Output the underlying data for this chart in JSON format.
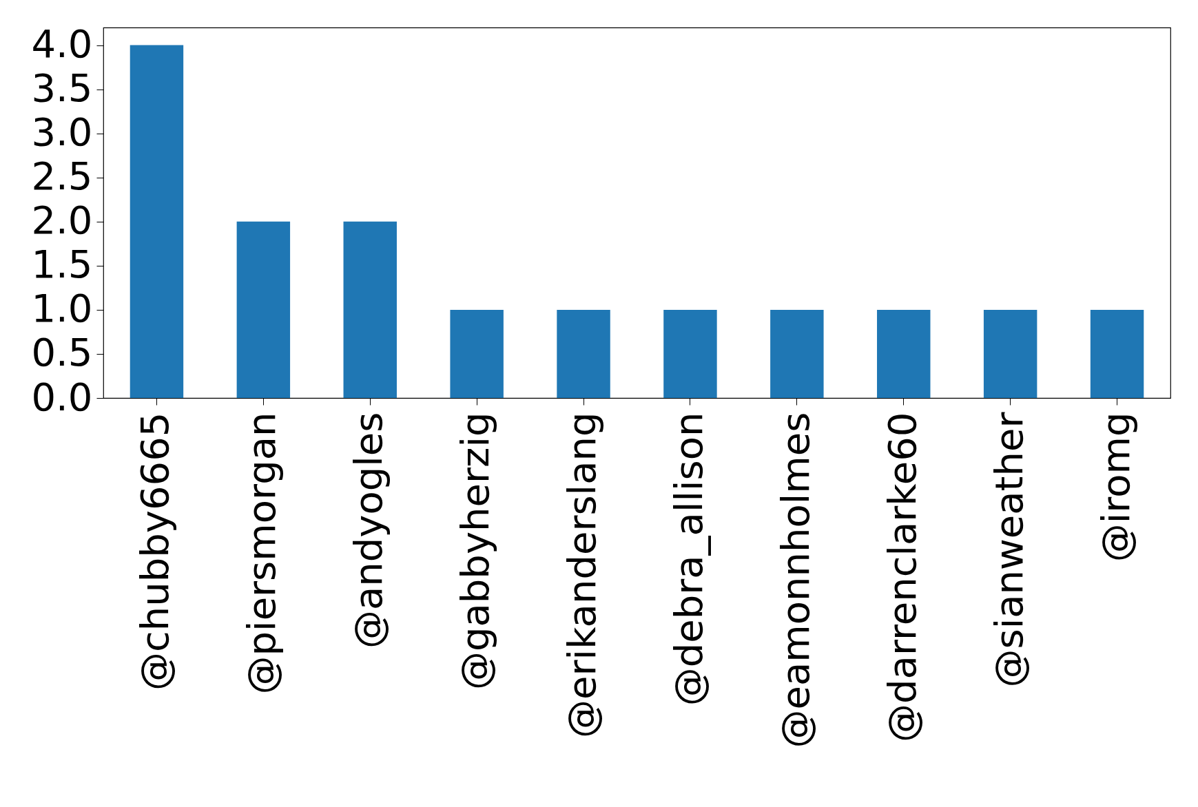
{
  "chart_data": {
    "type": "bar",
    "categories": [
      "@chubby6665",
      "@piersmorgan",
      "@andyogles",
      "@gabbyherzig",
      "@erikanderslang",
      "@debra_allison",
      "@eamonnholmes",
      "@darrenclarke60",
      "@sianweather",
      "@iromg"
    ],
    "values": [
      4,
      2,
      2,
      1,
      1,
      1,
      1,
      1,
      1,
      1
    ],
    "color": "#1f77b4",
    "ylim": [
      0,
      4.2
    ],
    "yticks": [
      {
        "value": 0,
        "label": "0.0"
      },
      {
        "value": 0.5,
        "label": "0.5"
      },
      {
        "value": 1,
        "label": "1.0"
      },
      {
        "value": 1.5,
        "label": "1.5"
      },
      {
        "value": 2,
        "label": "2.0"
      },
      {
        "value": 2.5,
        "label": "2.5"
      },
      {
        "value": 3,
        "label": "3.0"
      },
      {
        "value": 3.5,
        "label": "3.5"
      },
      {
        "value": 4,
        "label": "4.0"
      }
    ],
    "grid": false
  }
}
